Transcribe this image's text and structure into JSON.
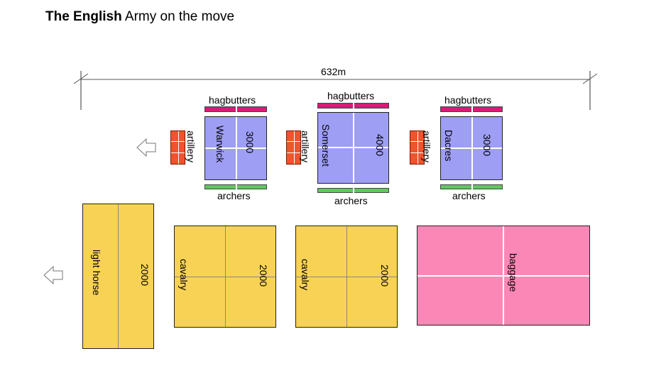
{
  "title": {
    "bold": "The English",
    "rest": " Army on the move"
  },
  "measure": {
    "label": "632m"
  },
  "divisions": [
    {
      "top_label": "hagbutters",
      "bottom_label": "archers",
      "commander": "Warwick",
      "count": "3000",
      "artillery": "artillery"
    },
    {
      "top_label": "hagbutters",
      "bottom_label": "archers",
      "commander": "Somerset",
      "count": "4000",
      "artillery": "artillery"
    },
    {
      "top_label": "hagbutters",
      "bottom_label": "archers",
      "commander": "Dacres",
      "count": "3000",
      "artillery": "artillery"
    }
  ],
  "rear": [
    {
      "name": "light horse",
      "count": "2000"
    },
    {
      "name": "cavalry",
      "count": "2000"
    },
    {
      "name": "cavalry",
      "count": "2000"
    },
    {
      "name": "baggage"
    }
  ],
  "colors": {
    "infantry": "#9e9ef5",
    "hagbutters": "#d81b78",
    "archers": "#5fc95f",
    "artillery": "#f0532d",
    "horse": "#f8d254",
    "baggage": "#fb87b6"
  },
  "icons": {
    "direction": "arrow-left-icon"
  }
}
